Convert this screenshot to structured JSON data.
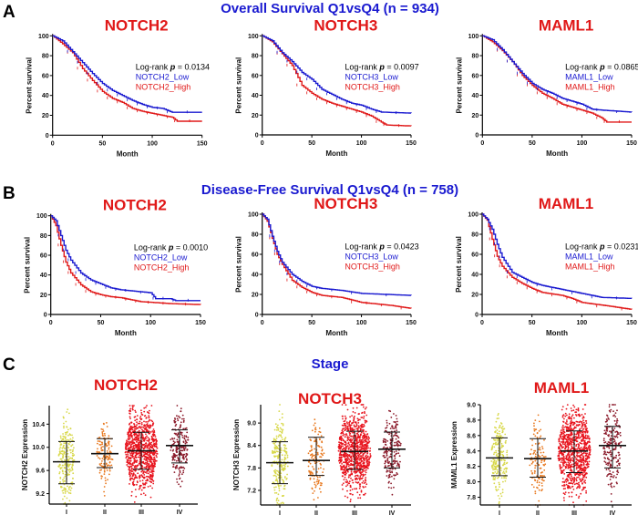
{
  "panel_letters": [
    "A",
    "B",
    "C"
  ],
  "section_titles": {
    "A": "Overall Survival Q1vsQ4 (n = 934)",
    "B": "Disease-Free Survival Q1vsQ4 (n = 758)",
    "C": "Stage"
  },
  "colors": {
    "low": "#1a1ad0",
    "high": "#e01818",
    "title_blue": "#1a1ad0",
    "title_red": "#e01818",
    "stage_I": "#d8d84a",
    "stage_II": "#e8781e",
    "stage_III": "#e8141e",
    "stage_IV": "#8b1a2a"
  },
  "chart_data": [
    {
      "type": "line",
      "panel": "A",
      "title": "NOTCH2",
      "xlabel": "Month",
      "ylabel": "Percent survival",
      "xlim": [
        0,
        150
      ],
      "ylim": [
        0,
        100
      ],
      "xticks": [
        0,
        50,
        100,
        150
      ],
      "yticks": [
        0,
        20,
        40,
        60,
        80,
        100
      ],
      "logrank_label": "Log-rank",
      "p_symbol": "p",
      "p_value": "0.0134",
      "series": [
        {
          "name": "NOTCH2_Low",
          "color": "#1a1ad0",
          "x": [
            0,
            10,
            20,
            30,
            40,
            50,
            60,
            70,
            80,
            90,
            100,
            110,
            120,
            150
          ],
          "y": [
            100,
            95,
            84,
            73,
            62,
            52,
            45,
            40,
            35,
            31,
            28,
            27,
            23,
            23
          ]
        },
        {
          "name": "NOTCH2_High",
          "color": "#e01818",
          "x": [
            0,
            10,
            20,
            30,
            40,
            50,
            60,
            70,
            80,
            90,
            100,
            110,
            120,
            125,
            150
          ],
          "y": [
            100,
            92,
            83,
            67,
            55,
            44,
            37,
            33,
            27,
            24,
            22,
            20,
            18,
            14,
            14
          ]
        }
      ]
    },
    {
      "type": "line",
      "panel": "A",
      "title": "NOTCH3",
      "xlabel": "Month",
      "ylabel": "Percent survival",
      "xlim": [
        0,
        150
      ],
      "ylim": [
        0,
        100
      ],
      "xticks": [
        0,
        50,
        100,
        150
      ],
      "yticks": [
        0,
        20,
        40,
        60,
        80,
        100
      ],
      "logrank_label": "Log-rank",
      "p_symbol": "p",
      "p_value": "0.0097",
      "series": [
        {
          "name": "NOTCH3_Low",
          "color": "#1a1ad0",
          "x": [
            0,
            10,
            20,
            30,
            40,
            50,
            60,
            70,
            80,
            90,
            100,
            110,
            120,
            150
          ],
          "y": [
            100,
            95,
            83,
            74,
            63,
            56,
            46,
            41,
            36,
            32,
            30,
            26,
            23,
            22
          ]
        },
        {
          "name": "NOTCH3_High",
          "color": "#e01818",
          "x": [
            0,
            10,
            20,
            30,
            40,
            50,
            60,
            70,
            80,
            90,
            100,
            110,
            120,
            125,
            150
          ],
          "y": [
            100,
            94,
            82,
            70,
            50,
            42,
            36,
            32,
            29,
            26,
            23,
            19,
            13,
            10,
            9
          ]
        }
      ]
    },
    {
      "type": "line",
      "panel": "A",
      "title": "MAML1",
      "xlabel": "Month",
      "ylabel": "Percent survival",
      "xlim": [
        0,
        150
      ],
      "ylim": [
        0,
        100
      ],
      "xticks": [
        0,
        50,
        100,
        150
      ],
      "yticks": [
        0,
        20,
        40,
        60,
        80,
        100
      ],
      "logrank_label": "Log-rank",
      "p_symbol": "p",
      "p_value": "0.0865",
      "series": [
        {
          "name": "MAML1_Low",
          "color": "#1a1ad0",
          "x": [
            0,
            10,
            20,
            30,
            40,
            50,
            60,
            70,
            80,
            90,
            100,
            110,
            120,
            150
          ],
          "y": [
            100,
            96,
            86,
            74,
            62,
            52,
            46,
            42,
            37,
            34,
            31,
            26,
            25,
            23
          ]
        },
        {
          "name": "MAML1_High",
          "color": "#e01818",
          "x": [
            0,
            10,
            20,
            30,
            40,
            50,
            60,
            70,
            80,
            90,
            100,
            110,
            120,
            125,
            150
          ],
          "y": [
            100,
            94,
            85,
            74,
            60,
            50,
            42,
            37,
            31,
            28,
            25,
            22,
            17,
            13,
            13
          ]
        }
      ]
    },
    {
      "type": "line",
      "panel": "B",
      "title": "NOTCH2",
      "xlabel": "Month",
      "ylabel": "Percent survival",
      "xlim": [
        0,
        150
      ],
      "ylim": [
        0,
        100
      ],
      "xticks": [
        0,
        50,
        100,
        150
      ],
      "yticks": [
        0,
        20,
        40,
        60,
        80,
        100
      ],
      "logrank_label": "Log-rank",
      "p_symbol": "p",
      "p_value": "0.0010",
      "series": [
        {
          "name": "NOTCH2_Low",
          "color": "#1a1ad0",
          "x": [
            0,
            5,
            10,
            15,
            20,
            30,
            40,
            50,
            60,
            70,
            80,
            100,
            105,
            120,
            125,
            150
          ],
          "y": [
            100,
            95,
            80,
            65,
            55,
            42,
            35,
            31,
            27,
            25,
            24,
            22,
            16,
            16,
            14,
            14
          ]
        },
        {
          "name": "NOTCH2_High",
          "color": "#e01818",
          "x": [
            0,
            5,
            10,
            15,
            20,
            30,
            40,
            50,
            60,
            70,
            80,
            90,
            105,
            120,
            150
          ],
          "y": [
            100,
            90,
            70,
            53,
            42,
            30,
            23,
            20,
            18,
            17,
            15,
            13,
            12,
            11,
            10
          ]
        }
      ]
    },
    {
      "type": "line",
      "panel": "B",
      "title": "NOTCH3",
      "xlabel": "Month",
      "ylabel": "Percent survival",
      "xlim": [
        0,
        150
      ],
      "ylim": [
        0,
        100
      ],
      "xticks": [
        0,
        50,
        100,
        150
      ],
      "yticks": [
        0,
        20,
        40,
        60,
        80,
        100
      ],
      "logrank_label": "Log-rank",
      "p_symbol": "p",
      "p_value": "0.0423",
      "series": [
        {
          "name": "NOTCH3_Low",
          "color": "#1a1ad0",
          "x": [
            0,
            5,
            10,
            15,
            20,
            30,
            40,
            50,
            60,
            80,
            100,
            150
          ],
          "y": [
            100,
            95,
            78,
            63,
            52,
            40,
            33,
            28,
            26,
            24,
            21,
            19
          ]
        },
        {
          "name": "NOTCH3_High",
          "color": "#e01818",
          "x": [
            0,
            5,
            10,
            15,
            20,
            30,
            40,
            50,
            60,
            80,
            100,
            110,
            130,
            150
          ],
          "y": [
            100,
            93,
            76,
            60,
            50,
            34,
            27,
            22,
            19,
            17,
            12,
            11,
            9,
            6
          ]
        }
      ]
    },
    {
      "type": "line",
      "panel": "B",
      "title": "MAML1",
      "xlabel": "Month",
      "ylabel": "Percent survival",
      "xlim": [
        0,
        150
      ],
      "ylim": [
        0,
        100
      ],
      "xticks": [
        0,
        50,
        100,
        150
      ],
      "yticks": [
        0,
        20,
        40,
        60,
        80,
        100
      ],
      "logrank_label": "Log-rank",
      "p_symbol": "p",
      "p_value": "0.0231",
      "series": [
        {
          "name": "MAML1_Low",
          "color": "#1a1ad0",
          "x": [
            0,
            5,
            10,
            15,
            20,
            30,
            40,
            50,
            60,
            80,
            100,
            120,
            150
          ],
          "y": [
            100,
            95,
            85,
            70,
            57,
            42,
            37,
            32,
            29,
            25,
            21,
            17,
            16
          ]
        },
        {
          "name": "MAML1_High",
          "color": "#e01818",
          "x": [
            0,
            5,
            10,
            15,
            20,
            30,
            40,
            50,
            60,
            80,
            90,
            100,
            130,
            150
          ],
          "y": [
            100,
            94,
            75,
            58,
            48,
            37,
            31,
            26,
            22,
            19,
            16,
            12,
            8,
            5
          ]
        }
      ]
    },
    {
      "type": "scatter",
      "panel": "C",
      "title": "NOTCH2",
      "ylabel": "NOTCH2 Expression",
      "categories": [
        "I",
        "II",
        "III",
        "IV"
      ],
      "ylim": [
        9.02,
        10.72
      ],
      "yticks": [
        9.2,
        9.6,
        10.0,
        10.4
      ],
      "ytick_labels": [
        "9.2",
        "9.6",
        "10.0",
        "10.4"
      ],
      "mean": [
        9.75,
        9.89,
        9.94,
        10.03
      ],
      "sd_low": [
        9.37,
        9.65,
        9.62,
        9.73
      ],
      "sd_high": [
        10.1,
        10.15,
        10.26,
        10.3
      ]
    },
    {
      "type": "scatter",
      "panel": "C",
      "title": "NOTCH3",
      "ylabel": "NOTCH3 Expression",
      "categories": [
        "I",
        "II",
        "III",
        "IV"
      ],
      "ylim": [
        6.81,
        9.49
      ],
      "yticks": [
        7.2,
        7.8,
        8.4,
        9.0
      ],
      "ytick_labels": [
        "7.2",
        "7.8",
        "8.4",
        "9.0"
      ],
      "mean": [
        7.94,
        8.0,
        8.24,
        8.3
      ],
      "sd_low": [
        7.38,
        7.6,
        7.76,
        7.8
      ],
      "sd_high": [
        8.5,
        8.62,
        8.78,
        8.76
      ]
    },
    {
      "type": "scatter",
      "panel": "C",
      "title": "MAML1",
      "ylabel": "MAML1 Expression",
      "categories": [
        "I",
        "II",
        "III",
        "IV"
      ],
      "ylim": [
        7.7,
        9.0
      ],
      "yticks": [
        7.8,
        8.0,
        8.2,
        8.4,
        8.6,
        8.8,
        9.0
      ],
      "ytick_labels": [
        "7.8",
        "8.0",
        "8.2",
        "8.4",
        "8.6",
        "8.8",
        "9.0"
      ],
      "mean": [
        8.31,
        8.3,
        8.4,
        8.47
      ],
      "sd_low": [
        8.08,
        8.06,
        8.12,
        8.18
      ],
      "sd_high": [
        8.57,
        8.56,
        8.66,
        8.72
      ]
    }
  ]
}
